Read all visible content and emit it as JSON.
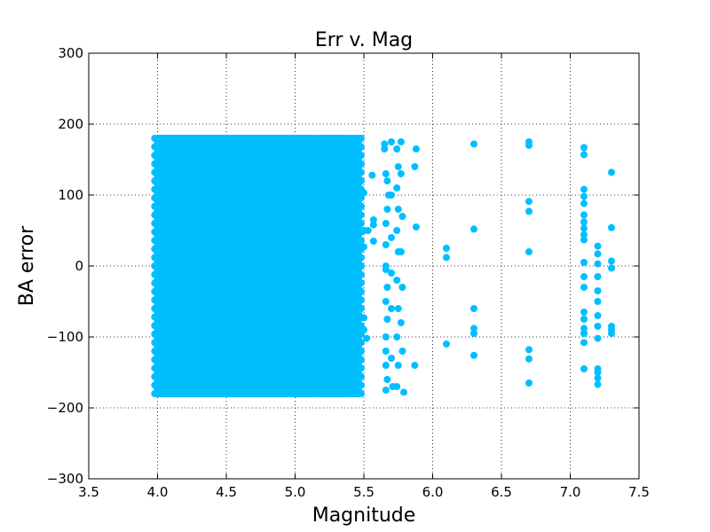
{
  "chart_data": {
    "type": "scatter",
    "title": "Err v. Mag",
    "xlabel": "Magnitude",
    "ylabel": "BA error",
    "xlim": [
      3.5,
      7.5
    ],
    "ylim": [
      -300,
      300
    ],
    "xticks": [
      "3.5",
      "4.0",
      "4.5",
      "5.0",
      "5.5",
      "6.0",
      "6.5",
      "7.0",
      "7.5"
    ],
    "yticks": [
      "300",
      "200",
      "100",
      "0",
      "−100",
      "−200",
      "−300"
    ],
    "grid": true,
    "marker_color": "#00bfff",
    "series": [
      {
        "bands": [
          {
            "xmin": 4.0,
            "xmax": 5.12,
            "ymin": -180,
            "ymax": 180
          },
          {
            "xmin": 5.16,
            "xmax": 5.36,
            "ymin": -180,
            "ymax": 180
          },
          {
            "xmin": 5.4,
            "xmax": 5.46,
            "ymin": -180,
            "ymax": 180
          }
        ],
        "points": [
          {
            "x": 5.5,
            "y": 103
          },
          {
            "x": 5.5,
            "y": 50
          },
          {
            "x": 5.5,
            "y": 27
          },
          {
            "x": 5.5,
            "y": -73
          },
          {
            "x": 5.5,
            "y": -90
          },
          {
            "x": 5.52,
            "y": -102
          },
          {
            "x": 5.53,
            "y": 50
          },
          {
            "x": 5.56,
            "y": 128
          },
          {
            "x": 5.57,
            "y": 65
          },
          {
            "x": 5.57,
            "y": 58
          },
          {
            "x": 5.57,
            "y": 35
          },
          {
            "x": 5.65,
            "y": 172
          },
          {
            "x": 5.65,
            "y": 165
          },
          {
            "x": 5.66,
            "y": 130
          },
          {
            "x": 5.67,
            "y": 120
          },
          {
            "x": 5.68,
            "y": 100
          },
          {
            "x": 5.67,
            "y": 80
          },
          {
            "x": 5.66,
            "y": 60
          },
          {
            "x": 5.66,
            "y": 30
          },
          {
            "x": 5.66,
            "y": 0
          },
          {
            "x": 5.66,
            "y": -5
          },
          {
            "x": 5.67,
            "y": -30
          },
          {
            "x": 5.66,
            "y": -50
          },
          {
            "x": 5.67,
            "y": -75
          },
          {
            "x": 5.66,
            "y": -100
          },
          {
            "x": 5.66,
            "y": -120
          },
          {
            "x": 5.66,
            "y": -140
          },
          {
            "x": 5.67,
            "y": -160
          },
          {
            "x": 5.66,
            "y": -175
          },
          {
            "x": 5.7,
            "y": 175
          },
          {
            "x": 5.7,
            "y": 100
          },
          {
            "x": 5.7,
            "y": 40
          },
          {
            "x": 5.7,
            "y": -10
          },
          {
            "x": 5.7,
            "y": -60
          },
          {
            "x": 5.7,
            "y": -130
          },
          {
            "x": 5.71,
            "y": -170
          },
          {
            "x": 5.74,
            "y": 165
          },
          {
            "x": 5.75,
            "y": 140
          },
          {
            "x": 5.74,
            "y": 110
          },
          {
            "x": 5.75,
            "y": 80
          },
          {
            "x": 5.74,
            "y": 50
          },
          {
            "x": 5.75,
            "y": 20
          },
          {
            "x": 5.74,
            "y": -20
          },
          {
            "x": 5.75,
            "y": -60
          },
          {
            "x": 5.74,
            "y": -100
          },
          {
            "x": 5.75,
            "y": -140
          },
          {
            "x": 5.74,
            "y": -170
          },
          {
            "x": 5.77,
            "y": 175
          },
          {
            "x": 5.77,
            "y": 130
          },
          {
            "x": 5.78,
            "y": 70
          },
          {
            "x": 5.77,
            "y": 20
          },
          {
            "x": 5.78,
            "y": -30
          },
          {
            "x": 5.77,
            "y": -80
          },
          {
            "x": 5.78,
            "y": -120
          },
          {
            "x": 5.79,
            "y": -178
          },
          {
            "x": 5.88,
            "y": 165
          },
          {
            "x": 5.87,
            "y": 140
          },
          {
            "x": 5.88,
            "y": 55
          },
          {
            "x": 5.87,
            "y": -140
          },
          {
            "x": 6.1,
            "y": 25
          },
          {
            "x": 6.1,
            "y": 12
          },
          {
            "x": 6.1,
            "y": -110
          },
          {
            "x": 6.3,
            "y": 172
          },
          {
            "x": 6.3,
            "y": 52
          },
          {
            "x": 6.3,
            "y": -60
          },
          {
            "x": 6.3,
            "y": -88
          },
          {
            "x": 6.3,
            "y": -95
          },
          {
            "x": 6.3,
            "y": -126
          },
          {
            "x": 6.7,
            "y": 175
          },
          {
            "x": 6.7,
            "y": 170
          },
          {
            "x": 6.7,
            "y": 91
          },
          {
            "x": 6.7,
            "y": 77
          },
          {
            "x": 6.7,
            "y": 20
          },
          {
            "x": 6.7,
            "y": -118
          },
          {
            "x": 6.7,
            "y": -131
          },
          {
            "x": 6.7,
            "y": -165
          },
          {
            "x": 7.1,
            "y": 167
          },
          {
            "x": 7.1,
            "y": 157
          },
          {
            "x": 7.1,
            "y": 108
          },
          {
            "x": 7.1,
            "y": 98
          },
          {
            "x": 7.1,
            "y": 88
          },
          {
            "x": 7.1,
            "y": 72
          },
          {
            "x": 7.1,
            "y": 62
          },
          {
            "x": 7.1,
            "y": 53
          },
          {
            "x": 7.1,
            "y": 44
          },
          {
            "x": 7.1,
            "y": 37
          },
          {
            "x": 7.1,
            "y": 5
          },
          {
            "x": 7.1,
            "y": -15
          },
          {
            "x": 7.1,
            "y": -30
          },
          {
            "x": 7.1,
            "y": -65
          },
          {
            "x": 7.1,
            "y": -75
          },
          {
            "x": 7.1,
            "y": -88
          },
          {
            "x": 7.1,
            "y": -95
          },
          {
            "x": 7.1,
            "y": -108
          },
          {
            "x": 7.1,
            "y": -145
          },
          {
            "x": 7.2,
            "y": 28
          },
          {
            "x": 7.2,
            "y": 17
          },
          {
            "x": 7.2,
            "y": 3
          },
          {
            "x": 7.2,
            "y": -15
          },
          {
            "x": 7.2,
            "y": -35
          },
          {
            "x": 7.2,
            "y": -50
          },
          {
            "x": 7.2,
            "y": -70
          },
          {
            "x": 7.2,
            "y": -85
          },
          {
            "x": 7.2,
            "y": -102
          },
          {
            "x": 7.2,
            "y": -145
          },
          {
            "x": 7.2,
            "y": -150
          },
          {
            "x": 7.2,
            "y": -158
          },
          {
            "x": 7.2,
            "y": -167
          },
          {
            "x": 7.3,
            "y": 132
          },
          {
            "x": 7.3,
            "y": 54
          },
          {
            "x": 7.3,
            "y": 7
          },
          {
            "x": 7.3,
            "y": -3
          },
          {
            "x": 7.3,
            "y": -85
          },
          {
            "x": 7.3,
            "y": -90
          },
          {
            "x": 7.3,
            "y": -95
          }
        ]
      }
    ]
  }
}
